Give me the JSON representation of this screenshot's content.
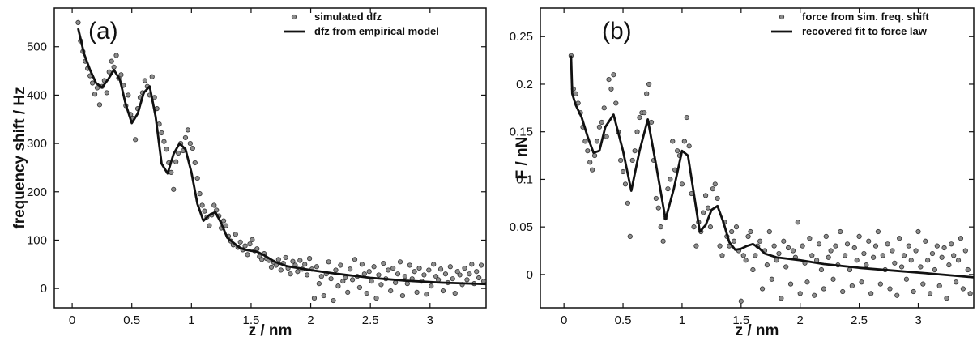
{
  "chart_data": [
    {
      "type": "scatter",
      "panel_label": "(a)",
      "xlabel": "z / nm",
      "ylabel": "frequency shift / Hz",
      "xlim": [
        -0.15,
        3.47
      ],
      "ylim": [
        -40,
        580
      ],
      "x_ticks": [
        0,
        0.5,
        1,
        1.5,
        2,
        2.5,
        3
      ],
      "x_tick_labels": [
        "0",
        "0.5",
        "1",
        "1.5",
        "2",
        "2.5",
        "3"
      ],
      "y_ticks": [
        0,
        100,
        200,
        300,
        400,
        500
      ],
      "y_tick_labels": [
        "0",
        "100",
        "200",
        "300",
        "400",
        "500"
      ],
      "grid": false,
      "legend_position": "top-right",
      "series": [
        {
          "name": "simulated dfz",
          "kind": "scatter",
          "color": "#8c8c8c",
          "x": [
            0.05,
            0.07,
            0.09,
            0.11,
            0.13,
            0.15,
            0.17,
            0.19,
            0.21,
            0.23,
            0.25,
            0.27,
            0.29,
            0.31,
            0.33,
            0.35,
            0.37,
            0.39,
            0.41,
            0.43,
            0.45,
            0.47,
            0.49,
            0.51,
            0.53,
            0.55,
            0.57,
            0.59,
            0.61,
            0.63,
            0.65,
            0.67,
            0.69,
            0.71,
            0.73,
            0.75,
            0.77,
            0.79,
            0.81,
            0.83,
            0.85,
            0.87,
            0.89,
            0.91,
            0.93,
            0.95,
            0.97,
            0.99,
            1.01,
            1.03,
            1.05,
            1.07,
            1.09,
            1.11,
            1.13,
            1.15,
            1.17,
            1.19,
            1.21,
            1.23,
            1.25,
            1.27,
            1.29,
            1.31,
            1.33,
            1.35,
            1.37,
            1.39,
            1.41,
            1.43,
            1.45,
            1.47,
            1.49,
            1.51,
            1.53,
            1.55,
            1.57,
            1.59,
            1.61,
            1.63,
            1.65,
            1.67,
            1.69,
            1.71,
            1.73,
            1.75,
            1.77,
            1.79,
            1.81,
            1.83,
            1.85,
            1.87,
            1.89,
            1.91,
            1.93,
            1.95,
            1.97,
            1.99,
            2.01,
            2.03,
            2.05,
            2.07,
            2.09,
            2.11,
            2.13,
            2.15,
            2.17,
            2.19,
            2.21,
            2.23,
            2.25,
            2.27,
            2.29,
            2.31,
            2.33,
            2.35,
            2.37,
            2.39,
            2.41,
            2.43,
            2.45,
            2.47,
            2.49,
            2.51,
            2.53,
            2.55,
            2.57,
            2.59,
            2.61,
            2.63,
            2.65,
            2.67,
            2.69,
            2.71,
            2.73,
            2.75,
            2.77,
            2.79,
            2.81,
            2.83,
            2.85,
            2.87,
            2.89,
            2.91,
            2.93,
            2.95,
            2.97,
            2.99,
            3.01,
            3.03,
            3.05,
            3.07,
            3.09,
            3.11,
            3.13,
            3.15,
            3.17,
            3.19,
            3.21,
            3.23,
            3.25,
            3.27,
            3.29,
            3.31,
            3.33,
            3.35,
            3.37,
            3.39,
            3.41,
            3.43,
            3.45
          ],
          "y": [
            550,
            512,
            490,
            470,
            455,
            440,
            425,
            402,
            415,
            380,
            418,
            430,
            405,
            448,
            470,
            458,
            482,
            435,
            442,
            420,
            378,
            400,
            360,
            352,
            308,
            372,
            395,
            405,
            430,
            418,
            400,
            438,
            395,
            372,
            340,
            322,
            304,
            288,
            260,
            240,
            205,
            262,
            280,
            300,
            285,
            312,
            328,
            300,
            290,
            260,
            228,
            196,
            172,
            160,
            148,
            130,
            152,
            172,
            162,
            150,
            125,
            140,
            130,
            108,
            98,
            90,
            112,
            85,
            96,
            80,
            88,
            70,
            92,
            101,
            78,
            82,
            66,
            60,
            72,
            62,
            58,
            44,
            54,
            48,
            60,
            38,
            52,
            64,
            42,
            30,
            56,
            48,
            35,
            58,
            40,
            50,
            28,
            62,
            40,
            -20,
            45,
            10,
            25,
            -15,
            30,
            55,
            20,
            -25,
            38,
            5,
            48,
            15,
            22,
            -8,
            40,
            18,
            60,
            25,
            2,
            50,
            30,
            -10,
            35,
            15,
            45,
            -20,
            28,
            8,
            52,
            20,
            38,
            -5,
            42,
            12,
            30,
            55,
            -15,
            25,
            10,
            48,
            20,
            35,
            -8,
            42,
            15,
            28,
            -12,
            38,
            5,
            50,
            25,
            18,
            40,
            -5,
            30,
            12,
            45,
            20,
            -10,
            35,
            28,
            8,
            42,
            18,
            30,
            50,
            10,
            35,
            22,
            48,
            15
          ],
          "data_labels": []
        },
        {
          "name": "dfz from empirical model",
          "kind": "line",
          "color": "#111111",
          "x": [
            0.05,
            0.1,
            0.15,
            0.2,
            0.25,
            0.3,
            0.35,
            0.4,
            0.45,
            0.5,
            0.55,
            0.6,
            0.65,
            0.7,
            0.75,
            0.8,
            0.85,
            0.9,
            0.95,
            1.0,
            1.05,
            1.1,
            1.15,
            1.2,
            1.25,
            1.3,
            1.35,
            1.4,
            1.45,
            1.5,
            1.55,
            1.6,
            1.7,
            1.8,
            2.0,
            2.2,
            2.5,
            2.8,
            3.1,
            3.47
          ],
          "y": [
            538,
            485,
            452,
            425,
            416,
            432,
            452,
            432,
            380,
            342,
            362,
            405,
            418,
            355,
            258,
            238,
            278,
            300,
            288,
            240,
            175,
            140,
            152,
            158,
            135,
            105,
            95,
            85,
            80,
            78,
            76,
            70,
            55,
            46,
            38,
            31,
            22,
            16,
            12,
            9
          ],
          "data_labels": []
        }
      ]
    },
    {
      "type": "scatter",
      "panel_label": "(b)",
      "xlabel": "z / nm",
      "ylabel": "F / nN",
      "xlim": [
        -0.2,
        3.47
      ],
      "ylim": [
        -0.035,
        0.28
      ],
      "x_ticks": [
        0,
        0.5,
        1,
        1.5,
        2,
        2.5,
        3
      ],
      "x_tick_labels": [
        "0",
        "0.5",
        "1",
        "1.5",
        "2",
        "2.5",
        "3"
      ],
      "y_ticks": [
        0,
        0.05,
        0.1,
        0.15,
        0.2,
        0.25
      ],
      "y_tick_labels": [
        "0",
        "0.05",
        "0.1",
        "0.15",
        "0.2",
        "0.25"
      ],
      "grid": false,
      "legend_position": "top-right",
      "series": [
        {
          "name": "force from sim. freq. shift",
          "kind": "scatter",
          "color": "#8c8c8c",
          "x": [
            0.06,
            0.08,
            0.1,
            0.12,
            0.14,
            0.16,
            0.18,
            0.2,
            0.22,
            0.24,
            0.26,
            0.28,
            0.3,
            0.32,
            0.34,
            0.36,
            0.38,
            0.4,
            0.42,
            0.44,
            0.46,
            0.48,
            0.5,
            0.52,
            0.54,
            0.56,
            0.58,
            0.6,
            0.62,
            0.64,
            0.66,
            0.68,
            0.7,
            0.72,
            0.74,
            0.76,
            0.78,
            0.8,
            0.82,
            0.84,
            0.86,
            0.88,
            0.9,
            0.92,
            0.94,
            0.96,
            0.98,
            1.0,
            1.02,
            1.04,
            1.06,
            1.08,
            1.1,
            1.12,
            1.14,
            1.16,
            1.18,
            1.2,
            1.22,
            1.24,
            1.26,
            1.28,
            1.3,
            1.32,
            1.34,
            1.36,
            1.38,
            1.4,
            1.42,
            1.44,
            1.46,
            1.48,
            1.5,
            1.52,
            1.54,
            1.56,
            1.58,
            1.6,
            1.62,
            1.64,
            1.66,
            1.68,
            1.7,
            1.72,
            1.74,
            1.76,
            1.78,
            1.8,
            1.82,
            1.84,
            1.86,
            1.88,
            1.9,
            1.92,
            1.94,
            1.96,
            1.98,
            2.0,
            2.02,
            2.04,
            2.06,
            2.08,
            2.1,
            2.12,
            2.14,
            2.16,
            2.18,
            2.2,
            2.22,
            2.24,
            2.26,
            2.28,
            2.3,
            2.32,
            2.34,
            2.36,
            2.38,
            2.4,
            2.42,
            2.44,
            2.46,
            2.48,
            2.5,
            2.52,
            2.54,
            2.56,
            2.58,
            2.6,
            2.62,
            2.64,
            2.66,
            2.68,
            2.7,
            2.72,
            2.74,
            2.76,
            2.78,
            2.8,
            2.82,
            2.84,
            2.86,
            2.88,
            2.9,
            2.92,
            2.94,
            2.96,
            2.98,
            3.0,
            3.02,
            3.04,
            3.06,
            3.08,
            3.1,
            3.12,
            3.14,
            3.16,
            3.18,
            3.2,
            3.22,
            3.24,
            3.26,
            3.28,
            3.3,
            3.32,
            3.34,
            3.36,
            3.38,
            3.4,
            3.42,
            3.44
          ],
          "y": [
            0.23,
            0.195,
            0.19,
            0.18,
            0.17,
            0.155,
            0.14,
            0.13,
            0.118,
            0.11,
            0.125,
            0.14,
            0.155,
            0.16,
            0.175,
            0.145,
            0.205,
            0.195,
            0.21,
            0.18,
            0.15,
            0.12,
            0.108,
            0.095,
            0.075,
            0.04,
            0.12,
            0.13,
            0.15,
            0.165,
            0.17,
            0.17,
            0.19,
            0.2,
            0.16,
            0.12,
            0.08,
            0.07,
            0.05,
            0.035,
            0.06,
            0.09,
            0.1,
            0.14,
            0.11,
            0.13,
            0.125,
            0.095,
            0.14,
            0.165,
            0.135,
            0.085,
            0.05,
            0.03,
            0.055,
            0.045,
            0.065,
            0.083,
            0.07,
            0.05,
            0.09,
            0.095,
            0.08,
            0.03,
            0.02,
            0.055,
            0.04,
            0.03,
            0.045,
            0.035,
            0.05,
            0.025,
            -0.028,
            0.02,
            0.015,
            0.04,
            0.045,
            0.005,
            0.02,
            0.03,
            0.035,
            -0.015,
            0.025,
            0.01,
            0.045,
            -0.005,
            0.03,
            0.015,
            0.022,
            -0.025,
            0.035,
            0.008,
            0.028,
            -0.01,
            0.025,
            0.018,
            0.055,
            -0.02,
            0.03,
            0.012,
            -0.008,
            0.038,
            0.02,
            -0.022,
            0.015,
            0.032,
            0.005,
            -0.015,
            0.04,
            0.018,
            0.025,
            -0.005,
            0.03,
            0.01,
            0.045,
            -0.018,
            0.02,
            0.032,
            0.005,
            -0.012,
            0.028,
            0.015,
            0.04,
            -0.008,
            0.022,
            0.01,
            0.035,
            -0.02,
            0.018,
            0.03,
            0.045,
            -0.01,
            0.02,
            0.005,
            0.032,
            -0.015,
            0.025,
            0.012,
            -0.022,
            0.038,
            0.008,
            0.02,
            -0.005,
            0.03,
            0.015,
            -0.018,
            0.025,
            0.045,
            0.008,
            -0.01,
            0.035,
            0.015,
            -0.02,
            0.022,
            0.005,
            0.03,
            -0.012,
            0.018,
            0.028,
            -0.025,
            0.01,
            0.032,
            0.02,
            -0.008,
            0.015,
            0.038,
            -0.015,
            0.025,
            0.005,
            -0.02
          ],
          "data_labels": []
        },
        {
          "name": "recovered fit to force law",
          "kind": "line",
          "color": "#111111",
          "x": [
            0.06,
            0.07,
            0.1,
            0.15,
            0.2,
            0.25,
            0.3,
            0.35,
            0.42,
            0.5,
            0.57,
            0.64,
            0.71,
            0.78,
            0.86,
            0.93,
            1.0,
            1.05,
            1.1,
            1.15,
            1.2,
            1.25,
            1.3,
            1.35,
            1.4,
            1.45,
            1.5,
            1.55,
            1.6,
            1.65,
            1.7,
            1.8,
            2.0,
            2.2,
            2.5,
            2.8,
            3.1,
            3.47
          ],
          "y": [
            0.23,
            0.19,
            0.178,
            0.165,
            0.145,
            0.128,
            0.13,
            0.155,
            0.168,
            0.13,
            0.088,
            0.13,
            0.163,
            0.115,
            0.058,
            0.09,
            0.13,
            0.125,
            0.085,
            0.045,
            0.052,
            0.068,
            0.072,
            0.055,
            0.034,
            0.026,
            0.027,
            0.03,
            0.032,
            0.028,
            0.022,
            0.018,
            0.015,
            0.011,
            0.007,
            0.004,
            0.001,
            -0.003
          ],
          "data_labels": []
        }
      ]
    }
  ]
}
